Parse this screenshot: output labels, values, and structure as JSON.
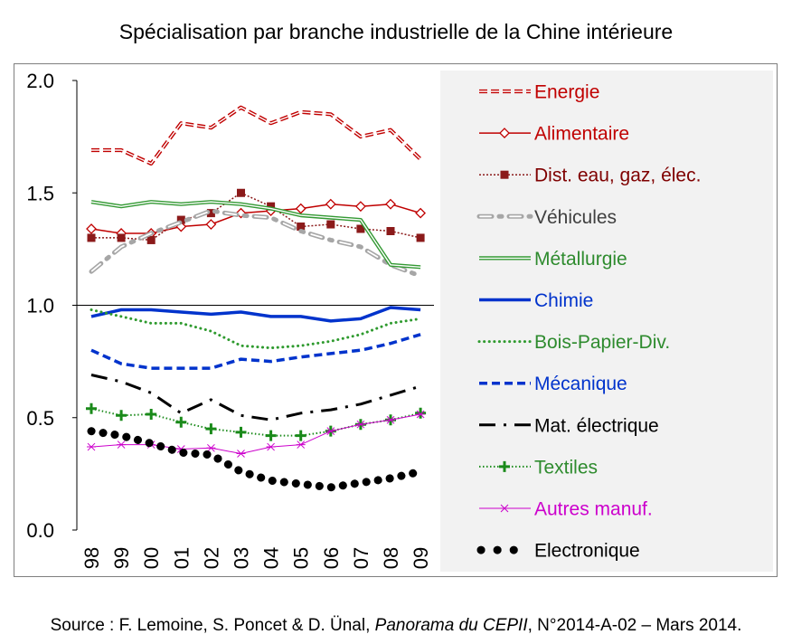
{
  "source": {
    "prefix": "Source : F. Lemoine, S. Poncet & D. Ünal, ",
    "publication": "Panorama du CEPII",
    "suffix": ", N°2014-A-02 – Mars 2014."
  },
  "chart_data": {
    "type": "line",
    "title": "Spécialisation par branche industrielle de la Chine intérieure",
    "x": [
      "98",
      "99",
      "00",
      "01",
      "02",
      "03",
      "04",
      "05",
      "06",
      "07",
      "08",
      "09"
    ],
    "yticks": [
      "2.0",
      "1.5",
      "1.0",
      "0.5",
      "0.0"
    ],
    "ylim": [
      0,
      2
    ],
    "reference_line": 1.0,
    "legend_position": "right",
    "grid": false,
    "series": [
      {
        "name": "Energie",
        "color": "#c00000",
        "text_color": "#c00000",
        "values": [
          1.69,
          1.69,
          1.63,
          1.81,
          1.79,
          1.88,
          1.81,
          1.86,
          1.85,
          1.75,
          1.78,
          1.65
        ]
      },
      {
        "name": "Alimentaire",
        "color": "#c00000",
        "text_color": "#c00000",
        "values": [
          1.34,
          1.32,
          1.32,
          1.35,
          1.36,
          1.41,
          1.42,
          1.43,
          1.45,
          1.44,
          1.45,
          1.41
        ]
      },
      {
        "name": "Dist. eau, gaz, élec.",
        "color": "#8b1a1a",
        "text_color": "#7f0000",
        "values": [
          1.3,
          1.3,
          1.29,
          1.38,
          1.41,
          1.5,
          1.44,
          1.35,
          1.36,
          1.34,
          1.33,
          1.3
        ]
      },
      {
        "name": "Véhicules",
        "color": "#a6a6a6",
        "text_color": "#404040",
        "values": [
          1.15,
          1.26,
          1.32,
          1.37,
          1.42,
          1.4,
          1.39,
          1.33,
          1.29,
          1.26,
          1.18,
          1.13
        ]
      },
      {
        "name": "Métallurgie",
        "color": "#339933",
        "text_color": "#2e8b2e",
        "values": [
          1.46,
          1.44,
          1.46,
          1.45,
          1.46,
          1.45,
          1.43,
          1.4,
          1.39,
          1.38,
          1.18,
          1.17
        ]
      },
      {
        "name": "Chimie",
        "color": "#0033cc",
        "text_color": "#0033cc",
        "values": [
          0.95,
          0.98,
          0.98,
          0.97,
          0.96,
          0.97,
          0.95,
          0.95,
          0.93,
          0.94,
          0.99,
          0.98
        ]
      },
      {
        "name": "Bois-Papier-Div.",
        "color": "#2e9a2e",
        "text_color": "#2e8b2e",
        "values": [
          0.98,
          0.95,
          0.92,
          0.92,
          0.885,
          0.82,
          0.81,
          0.82,
          0.84,
          0.87,
          0.92,
          0.94
        ]
      },
      {
        "name": "Mécanique",
        "color": "#0033cc",
        "text_color": "#0033cc",
        "values": [
          0.8,
          0.74,
          0.72,
          0.72,
          0.72,
          0.76,
          0.75,
          0.77,
          0.785,
          0.8,
          0.83,
          0.87
        ]
      },
      {
        "name": "Mat. électrique",
        "color": "#000000",
        "text_color": "#000000",
        "values": [
          0.69,
          0.66,
          0.61,
          0.52,
          0.58,
          0.51,
          0.49,
          0.52,
          0.535,
          0.56,
          0.6,
          0.64
        ]
      },
      {
        "name": "Textiles",
        "color": "#1a8a1a",
        "text_color": "#2e8b2e",
        "values": [
          0.54,
          0.51,
          0.515,
          0.48,
          0.45,
          0.435,
          0.42,
          0.42,
          0.44,
          0.47,
          0.49,
          0.52
        ]
      },
      {
        "name": "Autres manuf.",
        "color": "#cc00cc",
        "text_color": "#cc00cc",
        "values": [
          0.37,
          0.38,
          0.38,
          0.36,
          0.365,
          0.34,
          0.37,
          0.38,
          0.44,
          0.47,
          0.49,
          0.515
        ]
      },
      {
        "name": "Electronique",
        "color": "#000000",
        "text_color": "#000000",
        "values": [
          0.44,
          0.42,
          0.385,
          0.345,
          0.335,
          0.26,
          0.22,
          0.205,
          0.19,
          0.21,
          0.23,
          0.26
        ]
      }
    ]
  }
}
